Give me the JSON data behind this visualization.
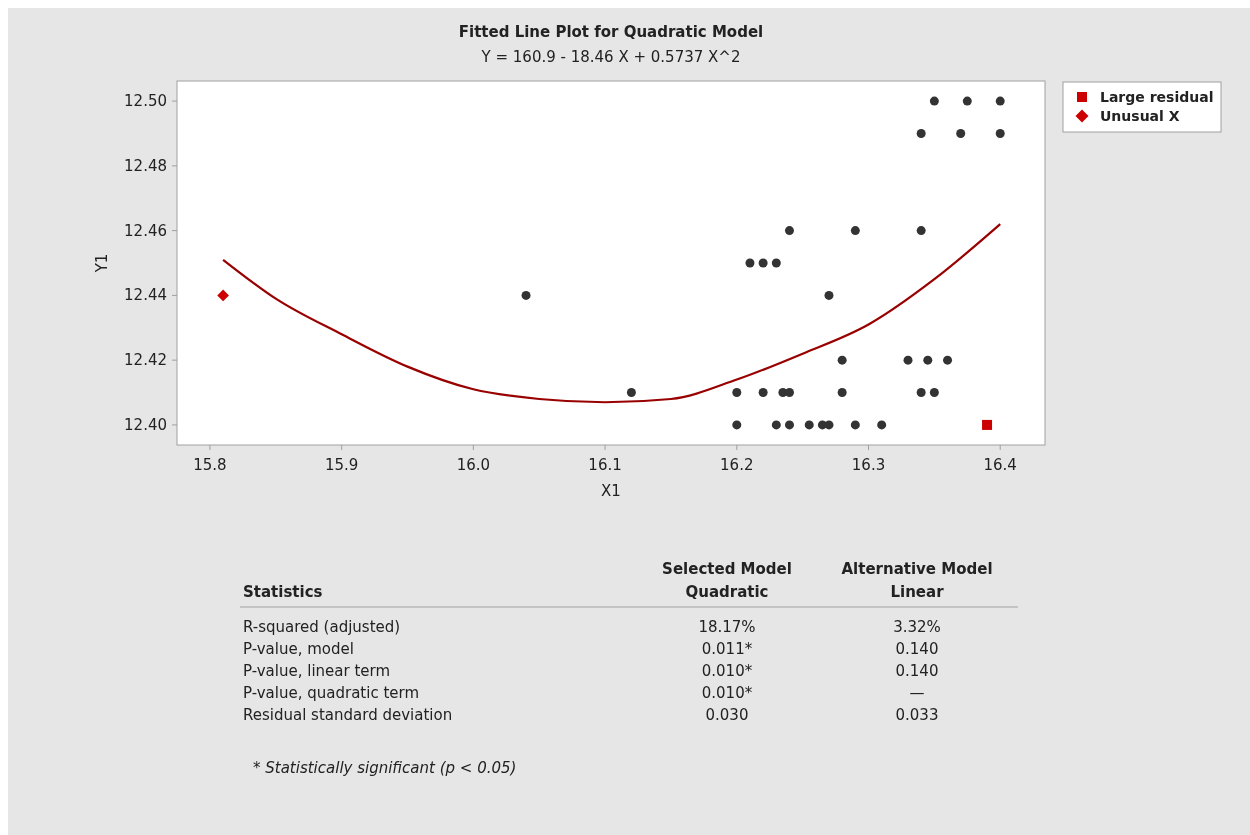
{
  "chart_data": {
    "type": "scatter",
    "title": "Fitted Line Plot for Quadratic Model",
    "subtitle": "Y = 160.9 - 18.46 X + 0.5737 X^2",
    "xlabel": "X1",
    "ylabel": "Y1",
    "xlim": [
      15.775,
      16.434
    ],
    "ylim": [
      12.3938,
      12.5062
    ],
    "xticks": [
      15.8,
      15.9,
      {
        "value": 16,
        "label": "16.0"
      },
      16.1,
      16.2,
      16.3,
      16.4
    ],
    "yticks": [
      {
        "value": 12.4,
        "label": "12.40"
      },
      12.42,
      12.44,
      12.46,
      12.48,
      {
        "value": 12.5,
        "label": "12.50"
      }
    ],
    "grid": false,
    "legend": "top right",
    "series": [
      {
        "type": "line",
        "color": "#990000",
        "marker": "none",
        "line_style": "solid",
        "x": [
          15.81,
          15.85,
          15.9,
          15.95,
          16.0,
          16.05,
          16.1,
          16.15,
          16.2,
          16.25,
          16.3,
          16.35,
          16.4
        ],
        "values": [
          12.451,
          12.439,
          12.428,
          12.418,
          12.411,
          12.408,
          12.407,
          12.408,
          12.414,
          12.422,
          12.431,
          12.445,
          12.462
        ]
      },
      {
        "color": "#333333",
        "marker": "circle",
        "x": [
          16.35,
          16.375,
          16.4,
          16.34,
          16.37,
          16.4,
          16.24,
          16.29,
          16.34,
          16.21,
          16.22,
          16.23,
          16.04,
          16.27,
          16.28,
          16.33,
          16.345,
          16.36,
          16.12,
          16.2,
          16.22,
          16.235,
          16.24,
          16.28,
          16.34,
          16.35,
          16.2,
          16.23,
          16.24,
          16.255,
          16.265,
          16.27,
          16.29,
          16.31
        ],
        "values": [
          12.5,
          12.5,
          12.5,
          12.49,
          12.49,
          12.49,
          12.46,
          12.46,
          12.46,
          12.45,
          12.45,
          12.45,
          12.44,
          12.44,
          12.42,
          12.42,
          12.42,
          12.42,
          12.41,
          12.41,
          12.41,
          12.41,
          12.41,
          12.41,
          12.41,
          12.41,
          12.4,
          12.4,
          12.4,
          12.4,
          12.4,
          12.4,
          12.4,
          12.4
        ]
      },
      {
        "name": "Large residual",
        "color": "#cc0000",
        "marker": "square",
        "x": [
          16.39
        ],
        "values": [
          12.4
        ]
      },
      {
        "name": "Unusual X",
        "color": "#cc0000",
        "marker": "diamond",
        "x": [
          15.81
        ],
        "values": [
          12.44
        ]
      }
    ],
    "annotations": [
      "Statistics",
      "Selected Model",
      "Quadratic",
      "Alternative Model",
      "Linear",
      "R-squared (adjusted)",
      "18.17%",
      "3.32%",
      "P-value, model",
      "0.011*",
      "0.140",
      "P-value, linear term",
      "0.010*",
      "0.140",
      "P-value, quadratic term",
      "0.010*",
      "—",
      "Residual standard deviation",
      "0.030",
      "0.033",
      "* Statistically significant (p < 0.05)"
    ]
  }
}
